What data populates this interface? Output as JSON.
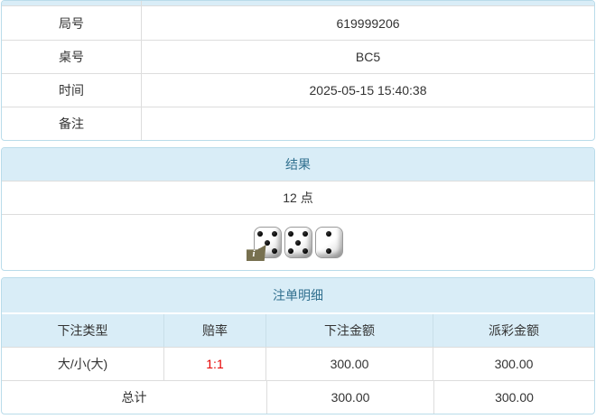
{
  "info_table": {
    "rows": [
      {
        "label": "局号",
        "value": "619999206"
      },
      {
        "label": "桌号",
        "value": "BC5"
      },
      {
        "label": "时间",
        "value": "2025-05-15 15:40:38"
      },
      {
        "label": "备注",
        "value": ""
      }
    ]
  },
  "result_panel": {
    "title": "结果",
    "points": "12 点",
    "dice": [
      5,
      5,
      2
    ],
    "info_icon_glyph": "i"
  },
  "bets_panel": {
    "title": "注单明细",
    "columns": [
      "下注类型",
      "赔率",
      "下注金额",
      "派彩金额"
    ],
    "rows": [
      {
        "type": "大/小(大)",
        "odds": "1:1",
        "bet": "300.00",
        "payout": "300.00"
      }
    ],
    "total": {
      "label": "总计",
      "bet": "300.00",
      "payout": "300.00"
    }
  },
  "colors": {
    "panel_border": "#b9dcea",
    "header_bg": "#d9edf7",
    "header_text": "#31708f",
    "cell_border": "#dddddd",
    "body_text": "#333333",
    "odds_red": "#e60000",
    "badge_bg": "#77704f"
  }
}
